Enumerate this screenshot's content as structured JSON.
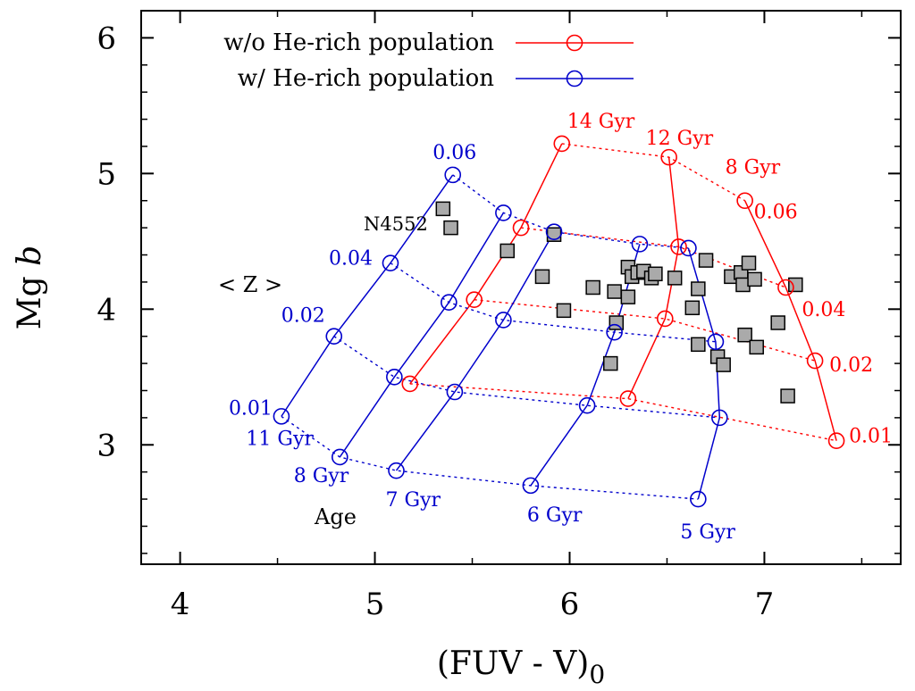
{
  "chart_data": {
    "type": "scatter",
    "title": "",
    "xlabel": "(FUV - V)",
    "xlabel_subscript": "0",
    "ylabel_main": "Mg",
    "ylabel_italic": "b",
    "xlim": [
      3.8,
      7.7
    ],
    "ylim": [
      2.12,
      6.2
    ],
    "xticks": [
      4,
      5,
      6,
      7
    ],
    "yticks": [
      3,
      4,
      5,
      6
    ],
    "legend_position": "top-left",
    "colors": {
      "red": "#ff0000",
      "blue": "#0000cc",
      "marker_fill": "#aaaaaa"
    },
    "series": [
      {
        "name": "w/o He-rich population",
        "color": "#ff0000",
        "ages": [
          "14 Gyr",
          "12 Gyr",
          "8 Gyr"
        ],
        "metallicities": [
          "0.01",
          "0.02",
          "0.04",
          "0.06"
        ],
        "grid": [
          [
            [
              5.18,
              3.45
            ],
            [
              5.51,
              4.07
            ],
            [
              5.75,
              4.6
            ],
            [
              5.96,
              5.22
            ]
          ],
          [
            [
              6.3,
              3.34
            ],
            [
              6.49,
              3.93
            ],
            [
              6.56,
              4.46
            ],
            [
              6.51,
              5.12
            ]
          ],
          [
            [
              7.37,
              3.03
            ],
            [
              7.26,
              3.62
            ],
            [
              7.11,
              4.16
            ],
            [
              6.9,
              4.8
            ]
          ]
        ]
      },
      {
        "name": "w/ He-rich population",
        "color": "#0000cc",
        "ages": [
          "11 Gyr",
          "8 Gyr",
          "7 Gyr",
          "6 Gyr",
          "5 Gyr"
        ],
        "metallicities": [
          "0.01",
          "0.02",
          "0.04",
          "0.06"
        ],
        "grid": [
          [
            [
              4.52,
              3.21
            ],
            [
              4.79,
              3.8
            ],
            [
              5.08,
              4.34
            ],
            [
              5.4,
              4.99
            ]
          ],
          [
            [
              4.82,
              2.91
            ],
            [
              5.1,
              3.5
            ],
            [
              5.38,
              4.05
            ],
            [
              5.66,
              4.71
            ]
          ],
          [
            [
              5.11,
              2.81
            ],
            [
              5.41,
              3.39
            ],
            [
              5.66,
              3.92
            ],
            [
              5.92,
              4.57
            ]
          ],
          [
            [
              5.8,
              2.7
            ],
            [
              6.09,
              3.29
            ],
            [
              6.23,
              3.83
            ],
            [
              6.36,
              4.48
            ]
          ],
          [
            [
              6.66,
              2.6
            ],
            [
              6.77,
              3.2
            ],
            [
              6.75,
              3.76
            ],
            [
              6.61,
              4.45
            ]
          ]
        ]
      }
    ],
    "observed_points": [
      [
        5.35,
        4.74
      ],
      [
        5.39,
        4.6
      ],
      [
        5.92,
        4.55
      ],
      [
        5.68,
        4.43
      ],
      [
        5.86,
        4.24
      ],
      [
        5.97,
        3.99
      ],
      [
        6.12,
        4.16
      ],
      [
        6.23,
        4.13
      ],
      [
        6.24,
        3.9
      ],
      [
        6.21,
        3.6
      ],
      [
        6.3,
        4.09
      ],
      [
        6.3,
        4.31
      ],
      [
        6.32,
        4.24
      ],
      [
        6.35,
        4.27
      ],
      [
        6.38,
        4.28
      ],
      [
        6.42,
        4.23
      ],
      [
        6.44,
        4.26
      ],
      [
        6.54,
        4.23
      ],
      [
        6.63,
        4.01
      ],
      [
        6.66,
        4.15
      ],
      [
        6.66,
        3.74
      ],
      [
        6.7,
        4.36
      ],
      [
        6.76,
        3.65
      ],
      [
        6.79,
        3.59
      ],
      [
        6.83,
        4.24
      ],
      [
        6.88,
        4.27
      ],
      [
        6.89,
        4.18
      ],
      [
        6.9,
        3.81
      ],
      [
        6.92,
        4.34
      ],
      [
        6.95,
        4.22
      ],
      [
        6.96,
        3.72
      ],
      [
        7.07,
        3.9
      ],
      [
        7.12,
        3.36
      ],
      [
        7.16,
        4.18
      ]
    ],
    "annotations": {
      "object_label": "N4552",
      "z_label": "< Z >",
      "age_label": "Age",
      "red_age_labels": [
        "14 Gyr",
        "12 Gyr",
        "8 Gyr"
      ],
      "red_z_labels": [
        "0.06",
        "0.04",
        "0.02",
        "0.01"
      ],
      "blue_age_labels": [
        "11 Gyr",
        "8 Gyr",
        "7 Gyr",
        "6 Gyr",
        "5 Gyr"
      ],
      "blue_z_labels": [
        "0.06",
        "0.04",
        "0.02",
        "0.01"
      ]
    }
  }
}
